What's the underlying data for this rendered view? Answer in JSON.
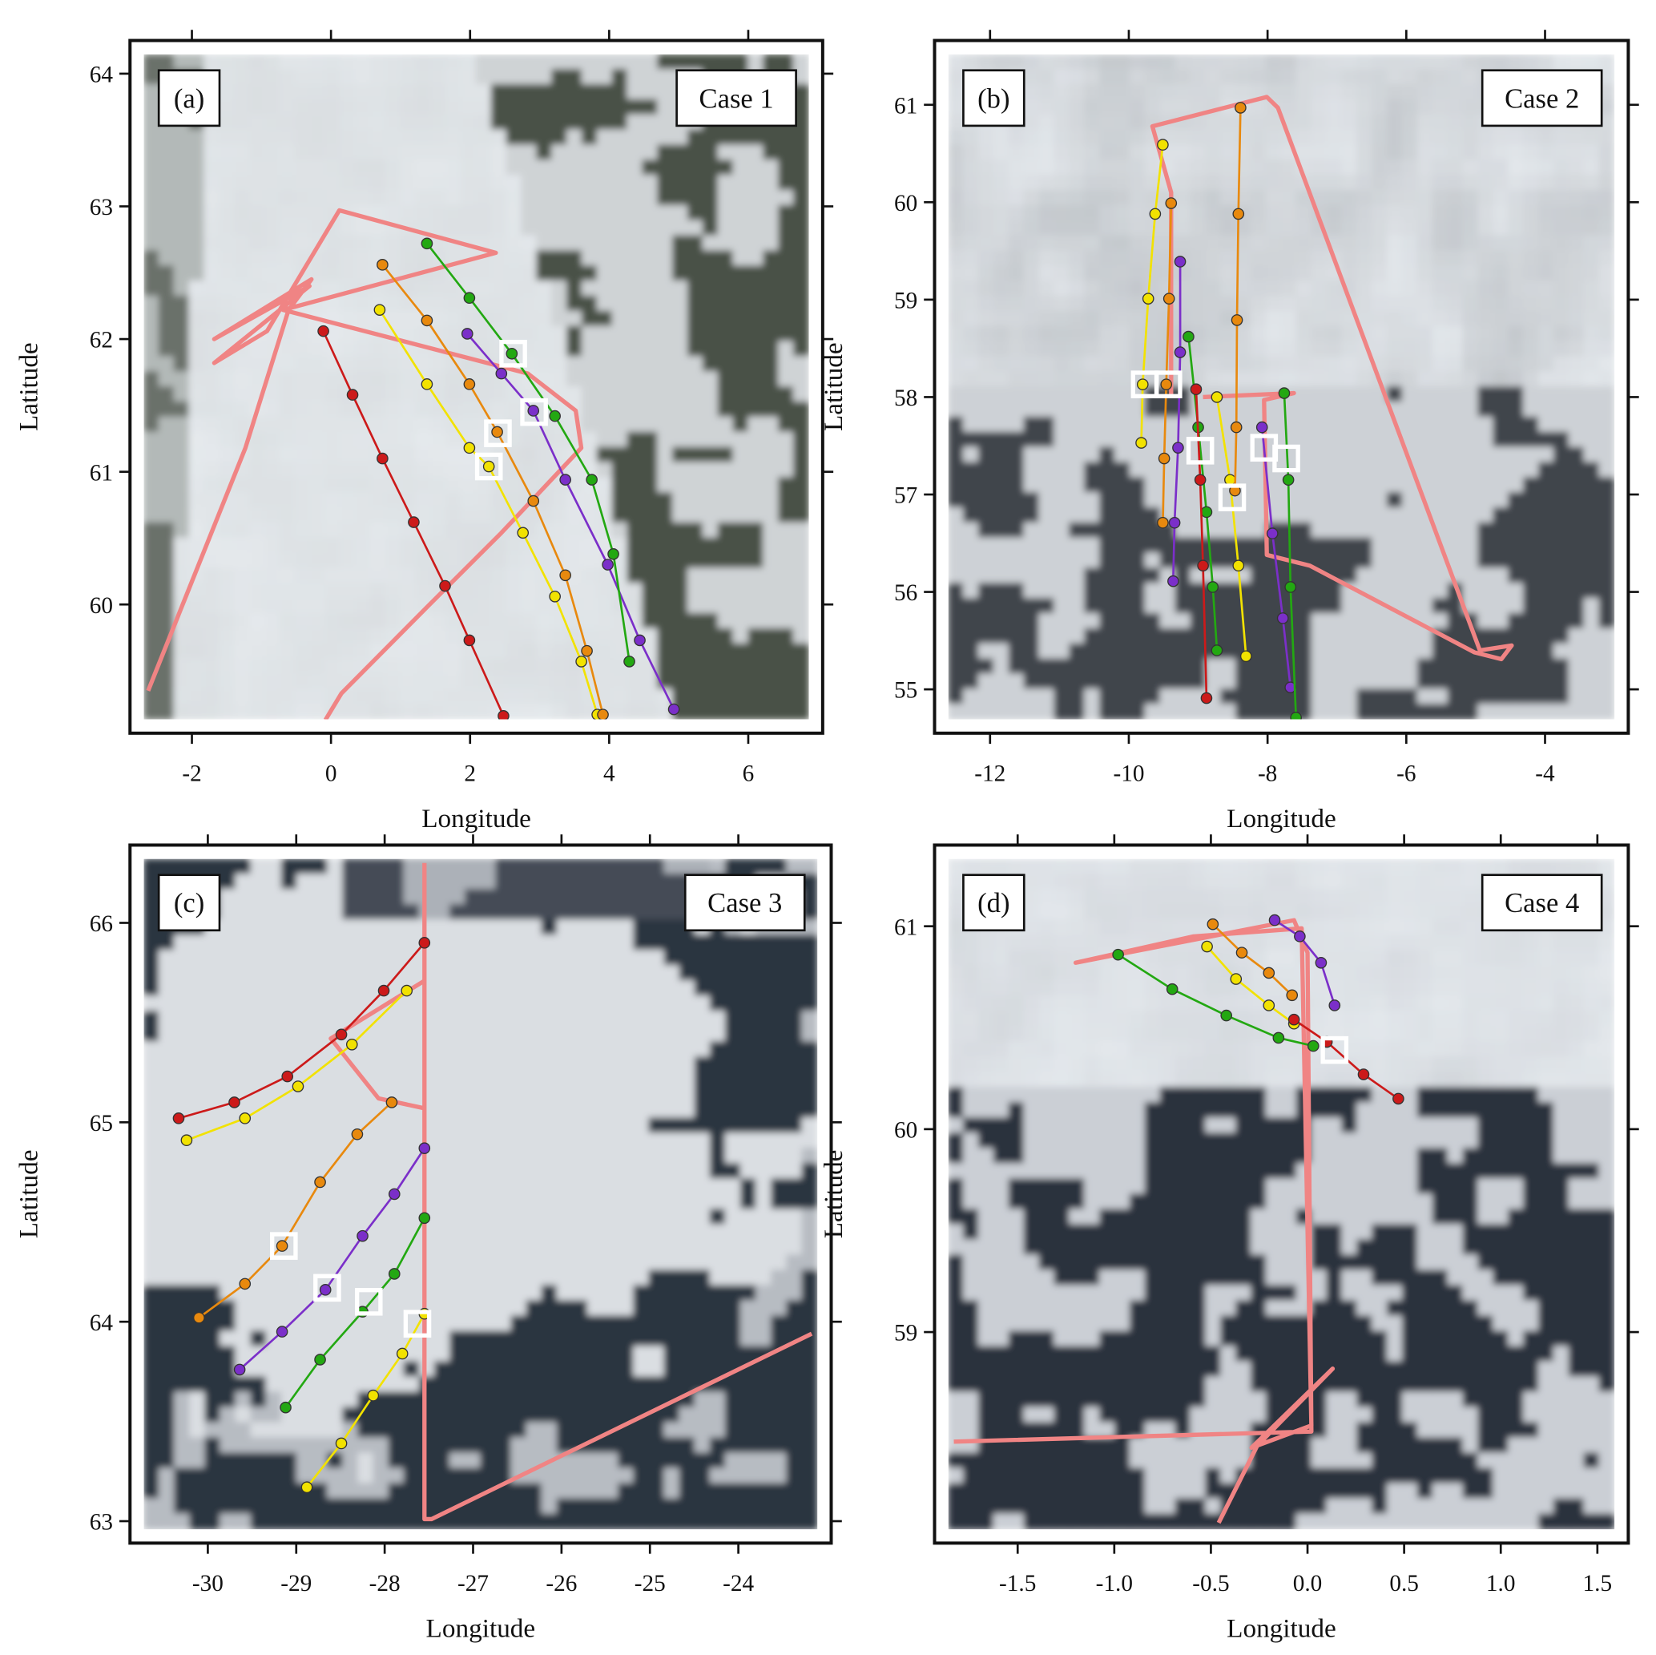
{
  "panels": [
    {
      "label": "(a)",
      "case": "Case 1",
      "xlabel": "Longitude",
      "ylabel": "Latitude",
      "xlim": [
        -2.89,
        7.07
      ],
      "ylim": [
        59.03,
        64.25
      ],
      "xticks": [
        -2,
        0,
        2,
        4,
        6
      ],
      "yticks": [
        60,
        61,
        62,
        63,
        64
      ],
      "flight_track": {
        "lon": [
          -2.63,
          -1.23,
          -0.61,
          -0.28,
          -1.68,
          -0.31,
          -1.68,
          -0.92,
          0.12,
          2.37,
          -0.69,
          2.83,
          3.52,
          3.6,
          2.45,
          1.38,
          0.15,
          -0.08
        ],
        "lat": [
          59.35,
          61.18,
          62.22,
          62.45,
          62.0,
          62.4,
          61.82,
          62.06,
          62.97,
          62.65,
          62.22,
          61.74,
          61.46,
          61.18,
          60.54,
          59.98,
          59.33,
          59.13
        ]
      },
      "trajectories": [
        {
          "color": "#cc1a1a",
          "lon": [
            -0.11,
            0.31,
            0.74,
            1.19,
            1.64,
            1.99,
            2.48
          ],
          "lat": [
            62.06,
            61.58,
            61.1,
            60.62,
            60.14,
            59.73,
            59.16
          ]
        },
        {
          "color": "#f2e200",
          "lon": [
            0.7,
            1.38,
            1.99,
            2.27,
            2.76,
            3.22,
            3.6,
            3.83
          ],
          "lat": [
            62.22,
            61.66,
            61.18,
            61.04,
            60.54,
            60.06,
            59.57,
            59.17
          ]
        },
        {
          "color": "#e8890e",
          "lon": [
            0.74,
            1.38,
            1.99,
            2.39,
            2.91,
            3.37,
            3.68,
            3.91
          ],
          "lat": [
            62.56,
            62.14,
            61.66,
            61.3,
            60.78,
            60.22,
            59.65,
            59.17
          ]
        },
        {
          "color": "#7b2fc9",
          "lon": [
            1.96,
            2.45,
            2.91,
            3.37,
            3.98,
            4.44,
            4.93
          ],
          "lat": [
            62.04,
            61.74,
            61.46,
            60.94,
            60.3,
            59.73,
            59.21
          ]
        },
        {
          "color": "#23a812",
          "lon": [
            1.38,
            1.99,
            2.6,
            3.22,
            3.75,
            4.06,
            4.29
          ],
          "lat": [
            62.72,
            62.31,
            61.89,
            61.42,
            60.94,
            60.38,
            59.57
          ]
        }
      ],
      "markers": {
        "lon": [
          2.62,
          2.92,
          2.4,
          2.27
        ],
        "lat": [
          61.89,
          61.45,
          61.29,
          61.04
        ]
      }
    },
    {
      "label": "(b)",
      "case": "Case 2",
      "xlabel": "Longitude",
      "ylabel": "Latitude",
      "xlim": [
        -12.8,
        -2.8
      ],
      "ylim": [
        54.55,
        61.66
      ],
      "xticks": [
        -12,
        -10,
        -8,
        -6,
        -4
      ],
      "yticks": [
        55,
        56,
        57,
        58,
        59,
        60,
        61
      ],
      "flight_track": {
        "lon": [
          -9.39,
          -9.39,
          -9.66,
          -8.01,
          -7.85,
          -4.94,
          -4.48,
          -4.63,
          -5.02,
          -7.39,
          -8.01,
          -8.05,
          -7.62,
          -8.93
        ],
        "lat": [
          58.0,
          60.1,
          60.78,
          61.08,
          60.97,
          55.4,
          55.45,
          55.31,
          55.38,
          56.27,
          56.38,
          57.97,
          58.04,
          58.0
        ]
      },
      "trajectories": [
        {
          "color": "#f2e200",
          "lon": [
            -9.51,
            -9.62,
            -9.72,
            -9.8,
            -9.82
          ],
          "lat": [
            60.59,
            59.88,
            59.01,
            58.13,
            57.53
          ]
        },
        {
          "color": "#e8890e",
          "lon": [
            -9.39,
            -9.42,
            -9.46,
            -9.49,
            -9.51
          ],
          "lat": [
            59.99,
            59.01,
            58.13,
            57.37,
            56.71
          ]
        },
        {
          "color": "#7b2fc9",
          "lon": [
            -9.26,
            -9.26,
            -9.29,
            -9.34,
            -9.36
          ],
          "lat": [
            59.39,
            58.46,
            57.48,
            56.71,
            56.11
          ]
        },
        {
          "color": "#23a812",
          "lon": [
            -9.14,
            -9.0,
            -8.88,
            -8.79,
            -8.73
          ],
          "lat": [
            58.62,
            57.69,
            56.82,
            56.05,
            55.4
          ]
        },
        {
          "color": "#cc1a1a",
          "lon": [
            -9.03,
            -8.97,
            -8.93,
            -8.88
          ],
          "lat": [
            58.08,
            57.15,
            56.27,
            54.91
          ]
        },
        {
          "color": "#f2e200",
          "lon": [
            -8.73,
            -8.54,
            -8.42,
            -8.31
          ],
          "lat": [
            58.0,
            57.15,
            56.27,
            55.34
          ]
        },
        {
          "color": "#e8890e",
          "lon": [
            -8.39,
            -8.42,
            -8.44,
            -8.45,
            -8.47
          ],
          "lat": [
            60.97,
            59.88,
            58.79,
            57.69,
            57.04
          ]
        },
        {
          "color": "#7b2fc9",
          "lon": [
            -8.08,
            -7.93,
            -7.78,
            -7.67
          ],
          "lat": [
            57.69,
            56.6,
            55.73,
            55.02
          ]
        },
        {
          "color": "#23a812",
          "lon": [
            -7.76,
            -7.7,
            -7.67,
            -7.59
          ],
          "lat": [
            58.04,
            57.15,
            56.05,
            54.71
          ]
        }
      ],
      "markers": {
        "lon": [
          -9.77,
          -9.43,
          -8.97,
          -8.51,
          -8.05,
          -7.73
        ],
        "lat": [
          58.13,
          58.13,
          57.45,
          56.97,
          57.48,
          57.37
        ]
      }
    },
    {
      "label": "(c)",
      "case": "Case 3",
      "xlabel": "Longitude",
      "ylabel": "Latitude",
      "xlim": [
        -30.88,
        -22.95
      ],
      "ylim": [
        62.89,
        66.39
      ],
      "xticks": [
        -30,
        -29,
        -28,
        -27,
        -26,
        -25,
        -24
      ],
      "yticks": [
        63,
        64,
        65,
        66
      ],
      "flight_track": {
        "lon": [
          -27.55,
          -27.55,
          -27.47,
          -23.17,
          null,
          -27.55,
          -28.61,
          -28.07,
          -27.55
        ],
        "lat": [
          66.3,
          63.01,
          63.01,
          63.94,
          null,
          65.71,
          65.42,
          65.12,
          65.07
        ]
      },
      "trajectories": [
        {
          "color": "#cc1a1a",
          "lon": [
            -30.33,
            -29.7,
            -29.1,
            -28.49,
            -28.01,
            -27.55
          ],
          "lat": [
            65.02,
            65.1,
            65.23,
            65.44,
            65.66,
            65.9
          ]
        },
        {
          "color": "#f2e200",
          "lon": [
            -30.24,
            -29.58,
            -28.98,
            -28.37,
            -27.75
          ],
          "lat": [
            64.91,
            65.02,
            65.18,
            65.39,
            65.66
          ]
        },
        {
          "color": "#e8890e",
          "lon": [
            -30.1,
            -29.58,
            -29.16,
            -28.73,
            -28.31,
            -27.92
          ],
          "lat": [
            64.02,
            64.19,
            64.38,
            64.7,
            64.94,
            65.1
          ]
        },
        {
          "color": "#7b2fc9",
          "lon": [
            -29.64,
            -29.16,
            -28.67,
            -28.25,
            -27.89,
            -27.55
          ],
          "lat": [
            63.76,
            63.95,
            64.16,
            64.43,
            64.64,
            64.87
          ]
        },
        {
          "color": "#23a812",
          "lon": [
            -29.12,
            -28.73,
            -28.25,
            -27.89,
            -27.55
          ],
          "lat": [
            63.57,
            63.81,
            64.05,
            64.24,
            64.52
          ]
        },
        {
          "color": "#f2e200",
          "lon": [
            -28.88,
            -28.49,
            -28.13,
            -27.8,
            -27.55
          ],
          "lat": [
            63.17,
            63.39,
            63.63,
            63.84,
            64.04
          ]
        }
      ],
      "markers": {
        "lon": [
          -29.14,
          -28.65,
          -28.18,
          -27.63
        ],
        "lat": [
          64.38,
          64.17,
          64.1,
          63.99
        ]
      }
    },
    {
      "label": "(d)",
      "case": "Case 4",
      "xlabel": "Longitude",
      "ylabel": "Latitude",
      "xlim": [
        -1.93,
        1.66
      ],
      "ylim": [
        57.96,
        61.4
      ],
      "xticks": [
        -1.5,
        {
          "value": -1,
          "label": "-1.0"
        },
        -0.5,
        {
          "value": 0,
          "label": "0.0"
        },
        0.5,
        {
          "value": 1,
          "label": "1.0"
        },
        1.5
      ],
      "yticks": [
        59,
        60,
        61
      ],
      "flight_track": {
        "lon": [
          -1.83,
          0.02,
          0,
          -0.07,
          -1.2,
          -0.59,
          -0.03,
          0.02,
          -0.29,
          0.13,
          -0.26,
          -0.46
        ],
        "lat": [
          58.46,
          58.51,
          60.87,
          61.03,
          60.82,
          60.95,
          60.99,
          58.54,
          58.43,
          58.82,
          58.44,
          58.06
        ]
      },
      "trajectories": [
        {
          "color": "#e8890e",
          "lon": [
            -0.49,
            -0.34,
            -0.2,
            -0.08
          ],
          "lat": [
            61.01,
            60.87,
            60.77,
            60.66
          ]
        },
        {
          "color": "#7b2fc9",
          "lon": [
            -0.17,
            -0.04,
            0.07,
            0.14
          ],
          "lat": [
            61.03,
            60.95,
            60.82,
            60.61
          ]
        },
        {
          "color": "#f2e200",
          "lon": [
            -0.52,
            -0.37,
            -0.2,
            -0.07
          ],
          "lat": [
            60.9,
            60.74,
            60.61,
            60.52
          ]
        },
        {
          "color": "#23a812",
          "lon": [
            -0.98,
            -0.7,
            -0.42,
            -0.15,
            0.03
          ],
          "lat": [
            60.86,
            60.69,
            60.56,
            60.45,
            60.41
          ]
        },
        {
          "color": "#cc1a1a",
          "lon": [
            -0.07,
            0.1,
            0.29,
            0.47
          ],
          "lat": [
            60.54,
            60.43,
            60.27,
            60.15
          ]
        }
      ],
      "markers": {
        "lon": [
          0.14
        ],
        "lat": [
          60.39
        ]
      }
    }
  ]
}
